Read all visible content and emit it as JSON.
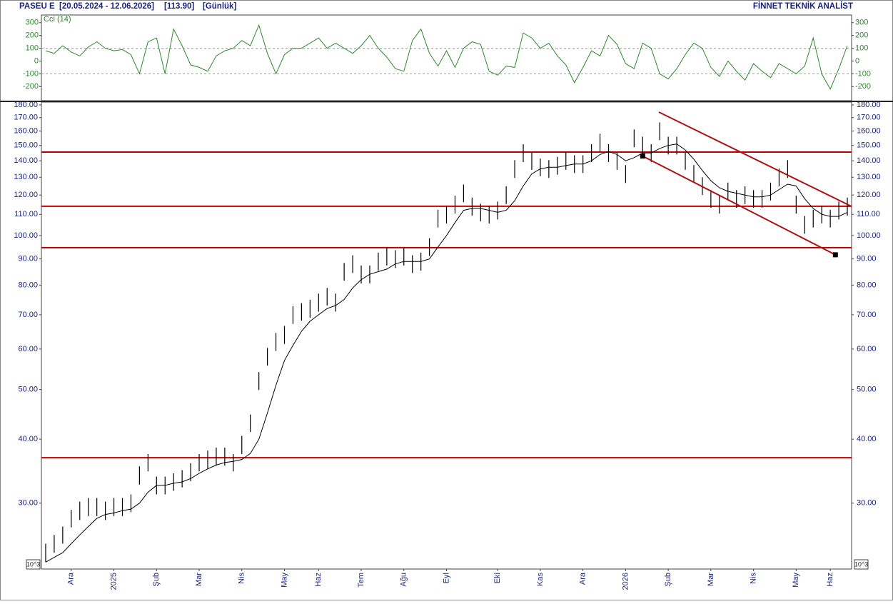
{
  "header": {
    "symbol": "PASEU E",
    "range": "[20.05.2024 - 12.06.2026]",
    "last": "[113.90]",
    "period": "[Günlük]",
    "brand": "FİNNET TEKNİK ANALİST"
  },
  "chart_data": [
    {
      "type": "line",
      "label": "Cci (14)",
      "color": "#2a8a2a",
      "values": [
        80,
        60,
        120,
        70,
        40,
        110,
        150,
        100,
        80,
        90,
        50,
        -100,
        150,
        180,
        -100,
        250,
        120,
        -30,
        -50,
        -80,
        40,
        80,
        100,
        160,
        120,
        280,
        60,
        -100,
        50,
        100,
        100,
        140,
        180,
        100,
        140,
        100,
        60,
        120,
        200,
        100,
        30,
        -60,
        -80,
        160,
        250,
        60,
        -40,
        80,
        -50,
        100,
        150,
        130,
        -80,
        -110,
        -40,
        -50,
        220,
        180,
        100,
        140,
        40,
        -30,
        -170,
        -50,
        80,
        40,
        200,
        130,
        -20,
        -60,
        140,
        100,
        -100,
        -140,
        -60,
        50,
        140,
        100,
        -50,
        -120,
        0,
        -80,
        -150,
        -20,
        -80,
        -130,
        -20,
        -60,
        -100,
        -40,
        180,
        -100,
        -220,
        -60,
        120
      ],
      "ylim": [
        -310,
        360
      ],
      "yticks": [
        300,
        200,
        100,
        0,
        -100,
        -200
      ],
      "reference_lines": [
        100,
        -100
      ]
    },
    {
      "type": "ohlc",
      "color": "#000000",
      "log_scale": true,
      "scale_label": "10^3",
      "categories": [
        null,
        null,
        null,
        "Ara",
        null,
        null,
        null,
        null,
        "2025",
        null,
        null,
        null,
        null,
        "Şub",
        null,
        null,
        null,
        null,
        "Mar",
        null,
        null,
        null,
        null,
        "Nis",
        null,
        null,
        null,
        null,
        "May",
        null,
        null,
        null,
        "Haz",
        null,
        null,
        null,
        null,
        "Tem",
        null,
        null,
        null,
        null,
        "Ağu",
        null,
        null,
        null,
        null,
        "Eyl",
        null,
        null,
        null,
        null,
        null,
        "Eki",
        null,
        null,
        null,
        null,
        "Kas",
        null,
        null,
        null,
        null,
        "Ara",
        null,
        null,
        null,
        null,
        "2026",
        null,
        null,
        null,
        null,
        "Şub",
        null,
        null,
        null,
        null,
        "Mar",
        null,
        null,
        null,
        null,
        "Nis",
        null,
        null,
        null,
        null,
        "May",
        null,
        null,
        null,
        "Haz",
        null,
        null
      ],
      "high": [
        25,
        26,
        27,
        29.1,
        30.2,
        30.7,
        30.7,
        30.2,
        30.7,
        30.7,
        31.2,
        35.4,
        37.4,
        33.8,
        33.8,
        34.3,
        34.8,
        35.9,
        37.4,
        38,
        38.5,
        38.5,
        37.4,
        40.6,
        44.7,
        54.1,
        60.3,
        64.5,
        66.6,
        72.8,
        73.8,
        74.9,
        77,
        79,
        77,
        88.4,
        91.5,
        87.4,
        87.4,
        92.6,
        94.6,
        93.6,
        94.6,
        91.5,
        92.6,
        98.8,
        112.3,
        114.4,
        119.6,
        125.8,
        118.6,
        115.4,
        114.4,
        116.5,
        124.8,
        140.4,
        150.8,
        145.6,
        141.4,
        140.4,
        142.5,
        145.6,
        143.5,
        143.5,
        150.8,
        158.1,
        150.8,
        145.6,
        137.3,
        161.2,
        156,
        150.8,
        166.4,
        156,
        156,
        145.6,
        137.3,
        130,
        122.7,
        119.6,
        126.9,
        122.7,
        124.8,
        122.7,
        122.7,
        126.9,
        135.2,
        140.4,
        119.6,
        109.2,
        112.3,
        114.4,
        112.3,
        116.5,
        118.6
      ],
      "low": [
        23,
        24,
        25,
        26.9,
        27.8,
        28.3,
        28.3,
        27.8,
        28.3,
        28.3,
        28.8,
        32.6,
        34.6,
        31.2,
        31.2,
        31.7,
        32.2,
        33.1,
        34.6,
        35,
        35.5,
        35.5,
        34.6,
        37.4,
        41.3,
        49.9,
        55.7,
        59.5,
        61.4,
        67.2,
        68.2,
        69.1,
        71,
        73,
        71,
        81.6,
        84.5,
        80.6,
        80.6,
        85.4,
        87.4,
        86.4,
        87.4,
        84.5,
        85.4,
        91.2,
        103.7,
        105.6,
        110.4,
        116.2,
        109.4,
        106.6,
        105.6,
        107.5,
        115.2,
        129.6,
        139.2,
        134.4,
        130.6,
        129.6,
        131.5,
        134.4,
        132.5,
        132.5,
        139.2,
        145.9,
        139.2,
        134.4,
        126.7,
        148.8,
        144,
        139.2,
        153.6,
        144,
        144,
        134.4,
        126.7,
        120,
        113.3,
        110.4,
        117.1,
        113.3,
        115.2,
        113.3,
        113.3,
        117.1,
        124.8,
        129.6,
        110.4,
        100.8,
        103.7,
        105.6,
        103.7,
        107.5,
        109.4
      ],
      "ma": {
        "color": "#000000",
        "values": [
          23,
          23.5,
          24,
          25,
          26,
          27,
          28,
          28.5,
          28.7,
          29,
          29.2,
          30,
          31.5,
          32.5,
          32.5,
          32.8,
          33,
          33.5,
          34.3,
          35,
          35.6,
          36,
          36.2,
          36.5,
          37.5,
          40,
          45,
          51,
          57,
          61,
          65,
          68,
          70,
          72,
          73,
          75,
          79,
          82,
          84,
          85,
          86,
          88,
          89,
          89,
          89,
          90,
          95,
          100,
          106,
          112,
          113,
          113,
          112,
          111,
          112,
          117,
          125,
          132,
          135,
          136,
          136,
          137,
          138,
          138,
          140,
          144,
          146,
          144,
          140,
          142,
          145,
          145,
          148,
          150,
          151,
          147,
          141,
          134,
          128,
          124,
          122,
          121,
          120,
          119,
          119,
          120,
          123,
          126,
          125,
          118,
          113,
          110,
          109,
          109,
          111
        ]
      },
      "ylim": [
        22.3,
        182.3
      ],
      "yticks": [
        {
          "value": 180,
          "label": "180.00"
        },
        {
          "value": 170,
          "label": "170.00"
        },
        {
          "value": 160,
          "label": "160.00"
        },
        {
          "value": 150,
          "label": "150.00"
        },
        {
          "value": 140,
          "label": "140.00"
        },
        {
          "value": 130,
          "label": "130.00"
        },
        {
          "value": 120,
          "label": "120.00"
        },
        {
          "value": 110,
          "label": "110.00"
        },
        {
          "value": 100,
          "label": "100.00"
        },
        {
          "value": 90,
          "label": "90.00"
        },
        {
          "value": 80,
          "label": "80.00"
        },
        {
          "value": 70,
          "label": "70.00"
        },
        {
          "value": 60,
          "label": "60.00"
        },
        {
          "value": 50,
          "label": "50.00"
        },
        {
          "value": 40,
          "label": "40.00"
        },
        {
          "value": 30,
          "label": "30.00"
        }
      ],
      "hlines": {
        "color": "#c00000",
        "values": [
          145.6,
          114.1,
          94.7,
          36.8
        ]
      },
      "channel": {
        "color": "#b01010",
        "lines": [
          {
            "x": [
              71.9,
              94.5
            ],
            "y": [
              174.3,
              114
            ]
          },
          {
            "x": [
              70,
              92.6
            ],
            "y": [
              143,
              91.7
            ]
          }
        ]
      }
    }
  ]
}
